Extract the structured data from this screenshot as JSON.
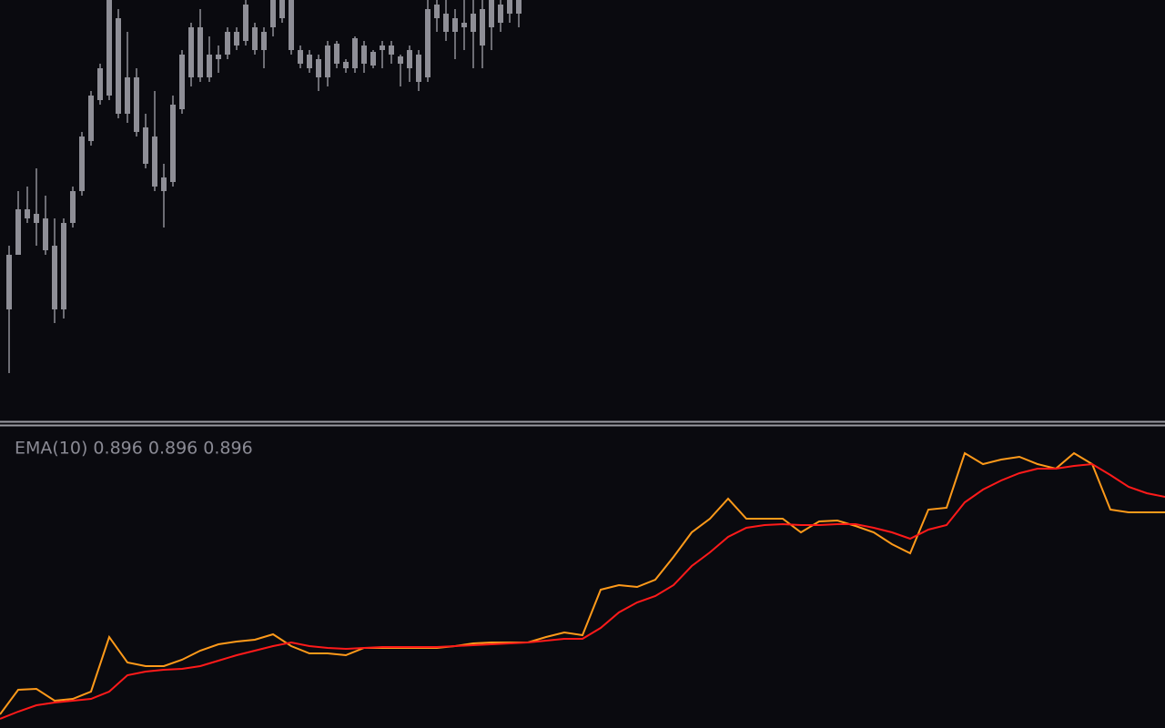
{
  "chart_data": [
    {
      "type": "candlestick",
      "color": "#8e8e96",
      "ylim": [
        0,
        462
      ],
      "categories": [
        null,
        null,
        null,
        null,
        null,
        null,
        null,
        null,
        null,
        null,
        null,
        null,
        null,
        null,
        null,
        null,
        null,
        null,
        null,
        null,
        null,
        null,
        null,
        null,
        null,
        null,
        null,
        null,
        null,
        null,
        null,
        null,
        null,
        null,
        null,
        null,
        null,
        null,
        null,
        null,
        null,
        null,
        null,
        null,
        null,
        null,
        null,
        null,
        null,
        null,
        null,
        null,
        null,
        null,
        null,
        null,
        null
      ],
      "open": [
        122,
        182,
        222,
        217,
        187,
        122,
        122,
        217,
        252,
        307,
        352,
        357,
        337,
        337,
        317,
        282,
        257,
        252,
        262,
        342,
        377,
        377,
        377,
        397,
        402,
        412,
        417,
        407,
        407,
        432,
        442,
        407,
        392,
        387,
        377,
        377,
        392,
        387,
        387,
        392,
        390,
        407,
        402,
        392,
        387,
        372,
        377,
        442,
        427,
        427,
        432,
        427,
        412,
        432,
        437,
        447,
        447
      ],
      "high": [
        192,
        252,
        257,
        277,
        247,
        222,
        222,
        257,
        317,
        362,
        392,
        462,
        452,
        427,
        387,
        337,
        362,
        282,
        357,
        407,
        437,
        452,
        422,
        412,
        432,
        432,
        462,
        437,
        432,
        462,
        462,
        462,
        412,
        407,
        402,
        417,
        417,
        397,
        422,
        417,
        407,
        417,
        417,
        402,
        412,
        407,
        462,
        462,
        462,
        452,
        462,
        462,
        462,
        462,
        462,
        462,
        462
      ],
      "low": [
        52,
        182,
        217,
        192,
        182,
        107,
        112,
        212,
        247,
        302,
        347,
        352,
        332,
        327,
        312,
        277,
        252,
        212,
        257,
        337,
        367,
        372,
        372,
        382,
        397,
        407,
        412,
        402,
        387,
        422,
        437,
        402,
        387,
        382,
        362,
        367,
        387,
        382,
        382,
        382,
        387,
        387,
        392,
        367,
        372,
        362,
        372,
        427,
        417,
        397,
        407,
        387,
        387,
        407,
        427,
        437,
        432
      ],
      "close": [
        182,
        232,
        232,
        227,
        222,
        192,
        217,
        252,
        312,
        357,
        387,
        462,
        442,
        377,
        377,
        322,
        312,
        267,
        347,
        402,
        432,
        432,
        402,
        402,
        427,
        427,
        457,
        432,
        427,
        462,
        462,
        462,
        407,
        402,
        397,
        412,
        414,
        394,
        420,
        412,
        405,
        412,
        412,
        400,
        407,
        402,
        452,
        457,
        447,
        442,
        437,
        447,
        452,
        462,
        457,
        462,
        462
      ]
    },
    {
      "type": "line",
      "title": "EMA(10) 0.896 0.896 0.896",
      "ylim": [
        0,
        330
      ],
      "categories": [
        null,
        null,
        null,
        null,
        null,
        null,
        null,
        null,
        null,
        null,
        null,
        null,
        null,
        null,
        null,
        null,
        null,
        null,
        null,
        null,
        null,
        null,
        null,
        null,
        null,
        null,
        null,
        null,
        null,
        null,
        null,
        null,
        null,
        null,
        null,
        null,
        null,
        null,
        null,
        null,
        null,
        null,
        null,
        null,
        null,
        null,
        null,
        null,
        null,
        null,
        null,
        null,
        null,
        null,
        null,
        null,
        null,
        null,
        null,
        null,
        null,
        null,
        null,
        null,
        null
      ],
      "series": [
        {
          "color": "#ff9a1a",
          "values": [
            15,
            42,
            43,
            30,
            32,
            40,
            100,
            72,
            68,
            68,
            75,
            85,
            92,
            95,
            97,
            103,
            90,
            82,
            82,
            80,
            88,
            88,
            88,
            88,
            88,
            90,
            93,
            94,
            94,
            94,
            100,
            105,
            102,
            152,
            157,
            155,
            163,
            188,
            215,
            230,
            252,
            230,
            230,
            230,
            215,
            227,
            228,
            222,
            215,
            202,
            192,
            240,
            242,
            302,
            290,
            295,
            298,
            290,
            285,
            302,
            290,
            240,
            237,
            237,
            237
          ]
        },
        {
          "color": "#ff1a1a",
          "values": [
            10,
            18,
            25,
            28,
            30,
            32,
            40,
            58,
            62,
            64,
            65,
            68,
            74,
            80,
            85,
            90,
            94,
            90,
            88,
            87,
            88,
            89,
            89,
            89,
            89,
            90,
            91,
            92,
            93,
            94,
            96,
            98,
            98,
            110,
            127,
            138,
            145,
            157,
            178,
            193,
            210,
            220,
            223,
            224,
            223,
            223,
            224,
            224,
            220,
            215,
            208,
            218,
            223,
            248,
            262,
            272,
            280,
            285,
            285,
            288,
            290,
            278,
            265,
            258,
            254
          ]
        }
      ]
    }
  ]
}
